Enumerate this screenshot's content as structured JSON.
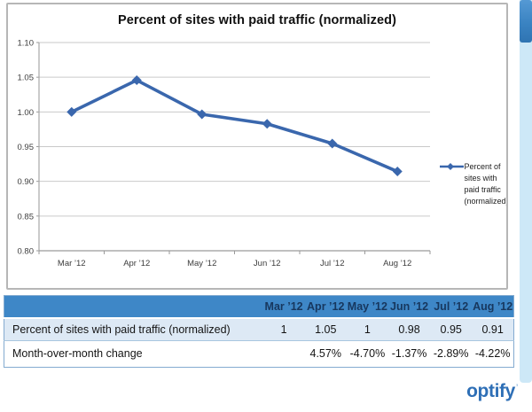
{
  "chart_data": {
    "type": "line",
    "title": "Percent of sites with paid traffic (normalized)",
    "categories": [
      "Mar ’12",
      "Apr ’12",
      "May ’12",
      "Jun ’12",
      "Jul ’12",
      "Aug ’12"
    ],
    "series": [
      {
        "name": "Percent of sites with paid traffic (normalized)",
        "values": [
          1.0,
          1.0457,
          0.9966,
          0.9829,
          0.9545,
          0.9142
        ]
      }
    ],
    "xlabel": "",
    "ylabel": "",
    "ylim": [
      0.8,
      1.1
    ],
    "y_ticks": [
      1.1,
      1.05,
      1.0,
      0.95,
      0.9,
      0.85,
      0.8
    ],
    "y_tick_labels": [
      "1.10",
      "1.05",
      "1.00",
      "0.95",
      "0.90",
      "0.85",
      "0.80"
    ],
    "grid": true,
    "legend_position": "right",
    "line_color": "#3a67ad"
  },
  "legend": {
    "lines": [
      "Percent of",
      "sites with",
      "paid traffic",
      "(normalized)"
    ]
  },
  "table": {
    "columns": [
      "Mar ’12",
      "Apr ’12",
      "May ’12",
      "Jun ’12",
      "Jul ’12",
      "Aug ’12"
    ],
    "rows": [
      {
        "label": "Percent of sites with paid traffic (normalized)",
        "values": [
          "1",
          "1.05",
          "1",
          "0.98",
          "0.95",
          "0.91"
        ]
      },
      {
        "label": "Month-over-month change",
        "values": [
          "",
          "4.57%",
          "-4.70%",
          "-1.37%",
          "-2.89%",
          "-4.22%"
        ]
      }
    ],
    "header_bg": "#3e87c7",
    "header_text_color": "#17375e",
    "row_alt_bg": "#dde9f5"
  },
  "footer": {
    "logo": "optify",
    "logo_mark": "’"
  },
  "scrollbar": {
    "track_color": "#cde8f7",
    "thumb_color": "#3a83c2"
  }
}
